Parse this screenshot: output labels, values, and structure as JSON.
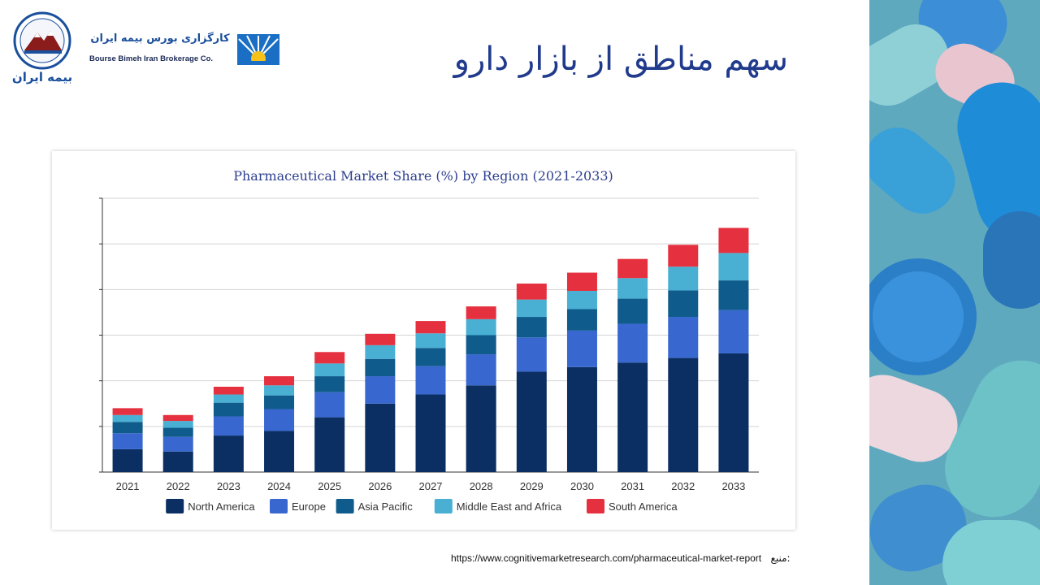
{
  "slide": {
    "title": "سهم مناطق از بازار دارو",
    "source_label": "منبع:",
    "source_url": "https://www.cognitivemarketresearch.com/pharmaceutical-market-report"
  },
  "branding": {
    "seal_text": "بیمه ایران",
    "company_fa": "کارگزاری بورس بیمه ایران",
    "company_en": "Bourse Bimeh Iran Brokerage Co."
  },
  "colors": {
    "north_america": "#0b2f63",
    "europe": "#3867cf",
    "asia_pacific": "#0f5c8c",
    "middle_east_africa": "#49b0d3",
    "south_america": "#e5313f"
  },
  "chart_data": {
    "type": "bar",
    "stacked": true,
    "title": "Pharmaceutical Market Share (%) by Region (2021-2033)",
    "xlabel": "",
    "ylabel": "",
    "ylim": [
      0,
      6
    ],
    "grid": true,
    "legend_position": "bottom",
    "categories": [
      "2021",
      "2022",
      "2023",
      "2024",
      "2025",
      "2026",
      "2027",
      "2028",
      "2029",
      "2030",
      "2031",
      "2032",
      "2033"
    ],
    "series": [
      {
        "name": "North America",
        "color_key": "north_america",
        "values": [
          0.5,
          0.45,
          0.8,
          0.9,
          1.2,
          1.5,
          1.7,
          1.9,
          2.2,
          2.3,
          2.4,
          2.5,
          2.6
        ]
      },
      {
        "name": "Europe",
        "color_key": "europe",
        "values": [
          0.35,
          0.32,
          0.42,
          0.48,
          0.55,
          0.6,
          0.62,
          0.68,
          0.75,
          0.8,
          0.85,
          0.9,
          0.95
        ]
      },
      {
        "name": "Asia Pacific",
        "color_key": "asia_pacific",
        "values": [
          0.25,
          0.2,
          0.3,
          0.3,
          0.35,
          0.38,
          0.4,
          0.42,
          0.45,
          0.47,
          0.55,
          0.58,
          0.65
        ]
      },
      {
        "name": "Middle East and Africa",
        "color_key": "middle_east_africa",
        "values": [
          0.15,
          0.15,
          0.18,
          0.22,
          0.28,
          0.3,
          0.32,
          0.35,
          0.38,
          0.4,
          0.45,
          0.52,
          0.6
        ]
      },
      {
        "name": "South America",
        "color_key": "south_america",
        "values": [
          0.15,
          0.13,
          0.17,
          0.2,
          0.25,
          0.25,
          0.27,
          0.28,
          0.35,
          0.4,
          0.42,
          0.48,
          0.55
        ]
      }
    ]
  }
}
